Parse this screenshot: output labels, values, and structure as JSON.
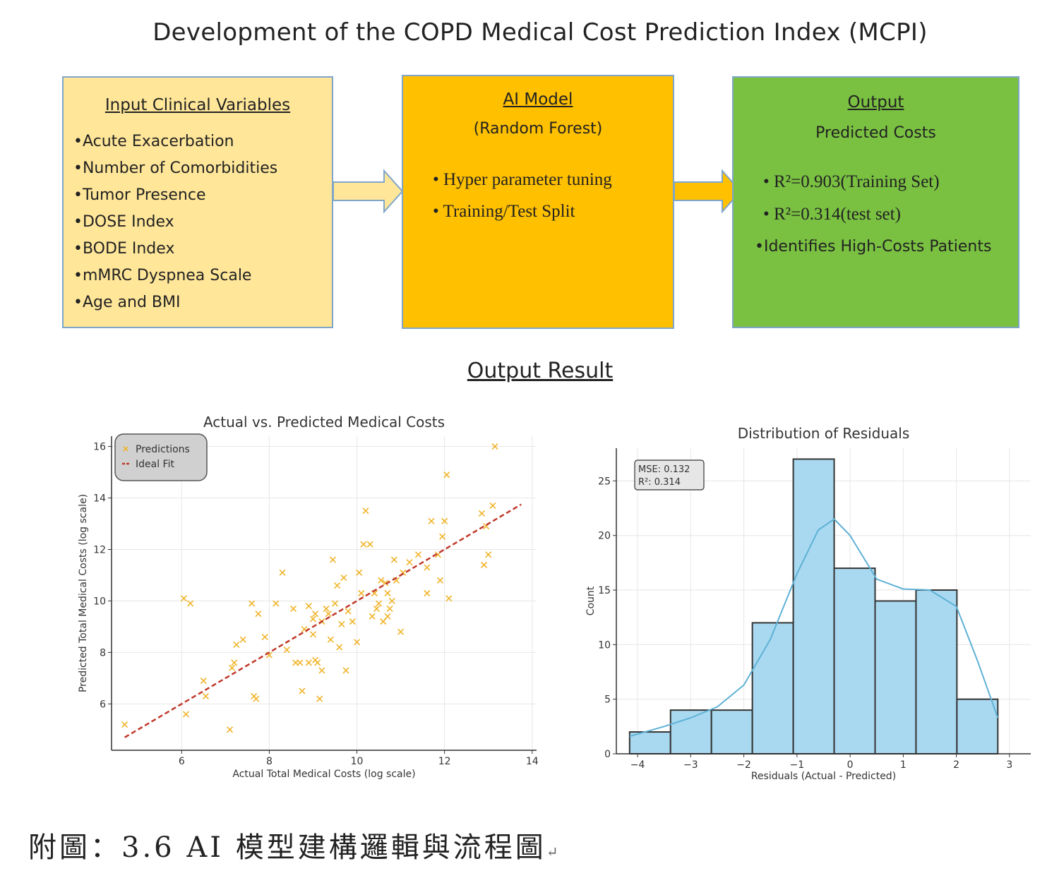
{
  "title": "Development of the COPD Medical Cost Prediction Index (MCPI)",
  "input_box": {
    "heading": "Input Clinical Variables",
    "items": [
      "•Acute Exacerbation",
      "•Number of Comorbidities",
      "•Tumor Presence",
      "•DOSE Index",
      "•BODE Index",
      "•mMRC Dyspnea Scale",
      "•Age and BMI"
    ]
  },
  "model_box": {
    "heading": "AI Model",
    "subheading": "(Random Forest)",
    "items": [
      "• Hyper parameter tuning",
      "• Training/Test Split"
    ]
  },
  "output_box": {
    "heading": "Output",
    "subheading": "Predicted Costs",
    "items": [
      "• R²=0.903(Training Set)",
      "• R²=0.314(test set)",
      "•Identifies High-Costs Patients"
    ]
  },
  "section_title": "Output Result",
  "caption": "附圖：3.6 AI 模型建構邏輯與流程圖",
  "colors": {
    "input": "#ffe699",
    "model": "#ffc000",
    "output": "#7ac142",
    "scatter": "#f0b429",
    "ideal": "#c0392b",
    "hist": "#a9d9f0",
    "kde": "#5fb1d6"
  },
  "chart_data": [
    {
      "type": "scatter",
      "title": "Actual vs. Predicted Medical Costs",
      "xlabel": "Actual Total Medical Costs (log scale)",
      "ylabel": "Predicted Total Medical Costs (log scale)",
      "xlim": [
        4.4,
        14.1
      ],
      "ylim": [
        4.2,
        16.4
      ],
      "xticks": [
        6,
        8,
        10,
        12,
        14
      ],
      "yticks": [
        6,
        8,
        10,
        12,
        14,
        16
      ],
      "grid": true,
      "legend": "upper left",
      "series": [
        {
          "name": "Predictions",
          "marker": "x",
          "x": [
            4.7,
            6.05,
            6.2,
            6.1,
            6.5,
            6.55,
            7.1,
            7.15,
            7.2,
            7.25,
            7.4,
            7.6,
            7.65,
            7.7,
            7.75,
            7.9,
            8.0,
            8.15,
            8.3,
            8.4,
            8.55,
            8.6,
            8.7,
            8.75,
            8.8,
            8.9,
            8.9,
            9.0,
            9.0,
            9.05,
            9.05,
            9.1,
            9.15,
            9.2,
            9.2,
            9.3,
            9.35,
            9.4,
            9.45,
            9.5,
            9.55,
            9.6,
            9.65,
            9.7,
            9.75,
            9.8,
            9.9,
            10.0,
            10.05,
            10.1,
            10.15,
            10.2,
            10.3,
            10.35,
            10.4,
            10.45,
            10.5,
            10.55,
            10.6,
            10.65,
            10.7,
            10.7,
            10.75,
            10.8,
            10.85,
            10.9,
            11.0,
            11.05,
            11.2,
            11.4,
            11.6,
            11.6,
            11.7,
            11.85,
            11.9,
            11.95,
            12.0,
            12.05,
            12.1,
            12.85,
            12.9,
            12.95,
            13.0,
            13.1,
            13.15
          ],
          "y": [
            5.2,
            10.1,
            9.9,
            5.6,
            6.9,
            6.3,
            5.0,
            7.4,
            7.6,
            8.3,
            8.5,
            9.9,
            6.3,
            6.2,
            9.5,
            8.6,
            7.9,
            9.9,
            11.1,
            8.1,
            9.7,
            7.6,
            7.6,
            6.5,
            8.9,
            9.8,
            7.6,
            9.3,
            8.7,
            9.5,
            7.7,
            7.6,
            6.2,
            7.3,
            9.2,
            9.7,
            9.5,
            8.5,
            11.6,
            9.9,
            10.6,
            8.2,
            9.1,
            10.9,
            7.3,
            9.6,
            9.2,
            8.4,
            11.1,
            10.3,
            12.2,
            13.5,
            12.2,
            9.4,
            10.3,
            9.7,
            9.9,
            10.8,
            9.2,
            10.7,
            9.4,
            10.3,
            9.7,
            10.0,
            11.6,
            10.8,
            8.8,
            11.1,
            11.5,
            11.8,
            11.3,
            10.3,
            13.1,
            11.8,
            10.8,
            12.5,
            13.1,
            14.9,
            10.1,
            13.4,
            11.4,
            12.9,
            11.8,
            13.7,
            16.0
          ]
        },
        {
          "name": "Ideal Fit",
          "type": "line",
          "x": [
            4.7,
            13.75
          ],
          "y": [
            4.7,
            13.75
          ]
        }
      ]
    },
    {
      "type": "bar",
      "title": "Distribution of Residuals",
      "xlabel": "Residuals (Actual - Predicted)",
      "ylabel": "Count",
      "xlim": [
        -4.4,
        3.4
      ],
      "ylim": [
        0,
        28
      ],
      "xticks": [
        -4,
        -3,
        -2,
        -1,
        0,
        1,
        2,
        3
      ],
      "yticks": [
        0,
        5,
        10,
        15,
        20,
        25
      ],
      "grid": true,
      "bin_edges": [
        -4.15,
        -3.38,
        -2.61,
        -1.84,
        -1.07,
        -0.3,
        0.47,
        1.24,
        2.01,
        2.78
      ],
      "values": [
        2,
        4,
        4,
        12,
        27,
        17,
        14,
        15,
        5
      ],
      "kde": {
        "x": [
          -4.15,
          -3.5,
          -3.0,
          -2.5,
          -2.0,
          -1.5,
          -1.0,
          -0.6,
          -0.3,
          0.0,
          0.5,
          1.0,
          1.5,
          2.0,
          2.4,
          2.78
        ],
        "y": [
          1.6,
          2.5,
          3.3,
          4.3,
          6.3,
          10.5,
          16.5,
          20.5,
          21.5,
          20.0,
          16.0,
          15.1,
          15.0,
          13.5,
          8.5,
          3.3
        ]
      },
      "annotation": [
        "MSE: 0.132",
        "R²: 0.314"
      ]
    }
  ]
}
